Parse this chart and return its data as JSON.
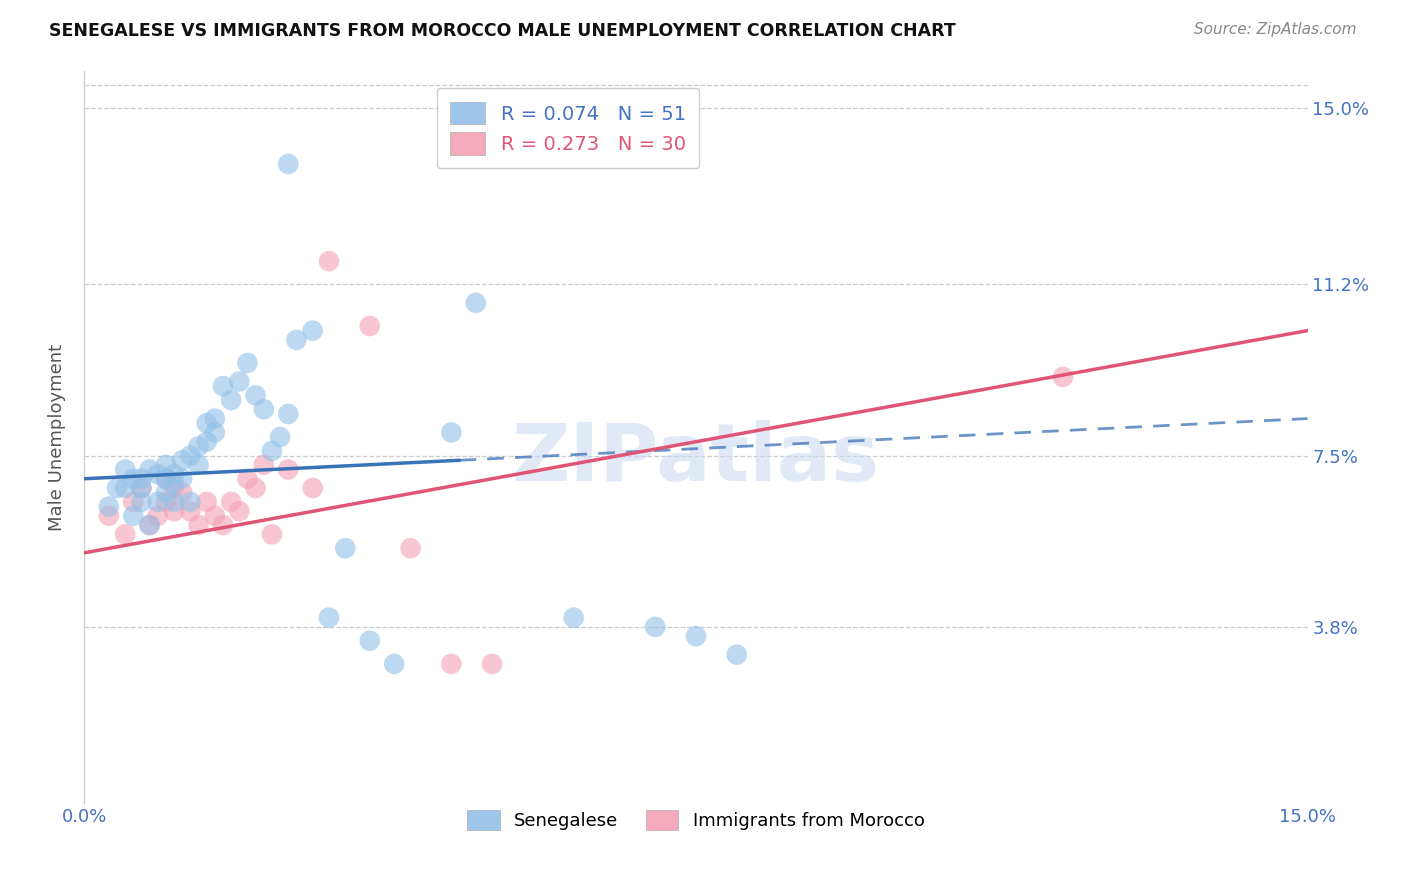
{
  "title": "SENEGALESE VS IMMIGRANTS FROM MOROCCO MALE UNEMPLOYMENT CORRELATION CHART",
  "source": "Source: ZipAtlas.com",
  "ylabel": "Male Unemployment",
  "ytick_labels": [
    "15.0%",
    "11.2%",
    "7.5%",
    "3.8%"
  ],
  "ytick_values": [
    0.15,
    0.112,
    0.075,
    0.038
  ],
  "xlim": [
    0.0,
    0.15
  ],
  "ylim": [
    0.0,
    0.158
  ],
  "blue_color": "#92C0E8",
  "pink_color": "#F4A0B5",
  "blue_line_color": "#3A72B8",
  "pink_line_color": "#E05575",
  "blue_line_solid_end": 0.046,
  "blue_line_y_start": 0.07,
  "blue_line_y_end": 0.083,
  "pink_line_y_start": 0.054,
  "pink_line_y_end": 0.102,
  "sen_x": [
    0.003,
    0.004,
    0.005,
    0.005,
    0.006,
    0.006,
    0.007,
    0.007,
    0.007,
    0.008,
    0.008,
    0.009,
    0.009,
    0.01,
    0.01,
    0.01,
    0.011,
    0.011,
    0.011,
    0.012,
    0.012,
    0.013,
    0.013,
    0.014,
    0.014,
    0.015,
    0.015,
    0.016,
    0.016,
    0.017,
    0.018,
    0.019,
    0.02,
    0.021,
    0.022,
    0.023,
    0.024,
    0.025,
    0.026,
    0.028,
    0.03,
    0.032,
    0.035,
    0.038,
    0.045,
    0.048,
    0.06,
    0.07,
    0.075,
    0.08,
    0.025
  ],
  "sen_y": [
    0.064,
    0.068,
    0.068,
    0.072,
    0.062,
    0.07,
    0.07,
    0.065,
    0.068,
    0.072,
    0.06,
    0.065,
    0.071,
    0.073,
    0.067,
    0.07,
    0.069,
    0.065,
    0.071,
    0.07,
    0.074,
    0.065,
    0.075,
    0.077,
    0.073,
    0.082,
    0.078,
    0.083,
    0.08,
    0.09,
    0.087,
    0.091,
    0.095,
    0.088,
    0.085,
    0.076,
    0.079,
    0.084,
    0.1,
    0.102,
    0.04,
    0.055,
    0.035,
    0.03,
    0.08,
    0.108,
    0.04,
    0.038,
    0.036,
    0.032,
    0.138
  ],
  "mor_x": [
    0.003,
    0.005,
    0.006,
    0.007,
    0.008,
    0.009,
    0.01,
    0.01,
    0.011,
    0.011,
    0.012,
    0.013,
    0.014,
    0.015,
    0.016,
    0.017,
    0.018,
    0.019,
    0.02,
    0.021,
    0.022,
    0.023,
    0.025,
    0.028,
    0.03,
    0.035,
    0.04,
    0.045,
    0.05,
    0.12
  ],
  "mor_y": [
    0.062,
    0.058,
    0.065,
    0.068,
    0.06,
    0.062,
    0.065,
    0.07,
    0.063,
    0.068,
    0.067,
    0.063,
    0.06,
    0.065,
    0.062,
    0.06,
    0.065,
    0.063,
    0.07,
    0.068,
    0.073,
    0.058,
    0.072,
    0.068,
    0.117,
    0.103,
    0.055,
    0.03,
    0.03,
    0.092
  ]
}
